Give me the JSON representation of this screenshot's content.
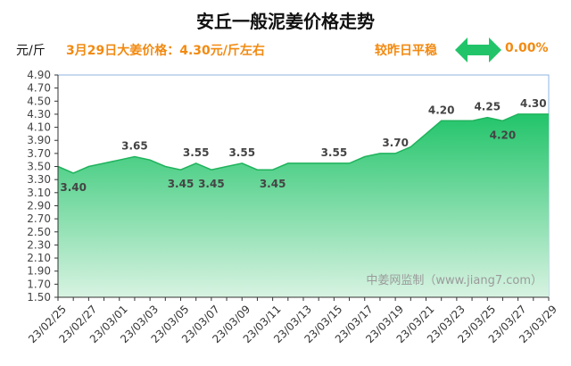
{
  "header": {
    "title": "安丘一般泥姜价格走势",
    "unit": "元/斤",
    "headline": "3月29日大姜价格：4.30元/斤左右",
    "compare_label": "较昨日平稳",
    "change_pct": "0.00%",
    "arrow_icon": "double-arrow-icon",
    "accent_color": "#f28a12",
    "arrow_color": "#22c46a"
  },
  "watermark": "中姜网监制（www.jiang7.com）",
  "chart_data": {
    "type": "area",
    "title": "安丘一般泥姜价格走势",
    "ylabel": "元/斤",
    "xlabel": "",
    "ylim": [
      1.5,
      4.9
    ],
    "yticks": [
      1.5,
      1.7,
      1.9,
      2.1,
      2.3,
      2.5,
      2.7,
      2.9,
      3.1,
      3.3,
      3.5,
      3.7,
      3.9,
      4.1,
      4.3,
      4.5,
      4.7,
      4.9
    ],
    "x": [
      "23/02/25",
      "23/02/26",
      "23/02/27",
      "23/02/28",
      "23/03/01",
      "23/03/02",
      "23/03/03",
      "23/03/04",
      "23/03/05",
      "23/03/06",
      "23/03/07",
      "23/03/08",
      "23/03/09",
      "23/03/10",
      "23/03/11",
      "23/03/12",
      "23/03/13",
      "23/03/14",
      "23/03/15",
      "23/03/16",
      "23/03/17",
      "23/03/18",
      "23/03/19",
      "23/03/20",
      "23/03/21",
      "23/03/22",
      "23/03/23",
      "23/03/24",
      "23/03/25",
      "23/03/26",
      "23/03/27",
      "23/03/28",
      "23/03/29"
    ],
    "xticks": [
      "23/02/25",
      "23/02/27",
      "23/03/01",
      "23/03/03",
      "23/03/05",
      "23/03/07",
      "23/03/09",
      "23/03/11",
      "23/03/13",
      "23/03/15",
      "23/03/17",
      "23/03/19",
      "23/03/21",
      "23/03/23",
      "23/03/25",
      "23/03/27",
      "23/03/29"
    ],
    "values": [
      3.5,
      3.4,
      3.5,
      3.55,
      3.6,
      3.65,
      3.6,
      3.5,
      3.45,
      3.55,
      3.45,
      3.5,
      3.55,
      3.45,
      3.45,
      3.55,
      3.55,
      3.55,
      3.55,
      3.55,
      3.65,
      3.7,
      3.7,
      3.8,
      4.0,
      4.2,
      4.2,
      4.2,
      4.25,
      4.2,
      4.3,
      4.3,
      4.3
    ],
    "data_labels": [
      {
        "x": "23/02/26",
        "text": "3.40",
        "pos": "below"
      },
      {
        "x": "23/03/02",
        "text": "3.65",
        "pos": "above"
      },
      {
        "x": "23/03/05",
        "text": "3.45",
        "pos": "below"
      },
      {
        "x": "23/03/06",
        "text": "3.55",
        "pos": "above"
      },
      {
        "x": "23/03/07",
        "text": "3.45",
        "pos": "below"
      },
      {
        "x": "23/03/09",
        "text": "3.55",
        "pos": "above"
      },
      {
        "x": "23/03/11",
        "text": "3.45",
        "pos": "below"
      },
      {
        "x": "23/03/15",
        "text": "3.55",
        "pos": "above"
      },
      {
        "x": "23/03/19",
        "text": "3.70",
        "pos": "above"
      },
      {
        "x": "23/03/22",
        "text": "4.20",
        "pos": "above"
      },
      {
        "x": "23/03/25",
        "text": "4.25",
        "pos": "above"
      },
      {
        "x": "23/03/26",
        "text": "4.20",
        "pos": "below"
      },
      {
        "x": "23/03/28",
        "text": "4.30",
        "pos": "above"
      }
    ],
    "grid": true,
    "colors": {
      "fill_top": "#22c46a",
      "fill_bottom": "#d8f3e2",
      "line": "#1fb35c",
      "axis": "#333333",
      "plot_border": "#8fb6e0",
      "grid": "#dddddd"
    }
  }
}
